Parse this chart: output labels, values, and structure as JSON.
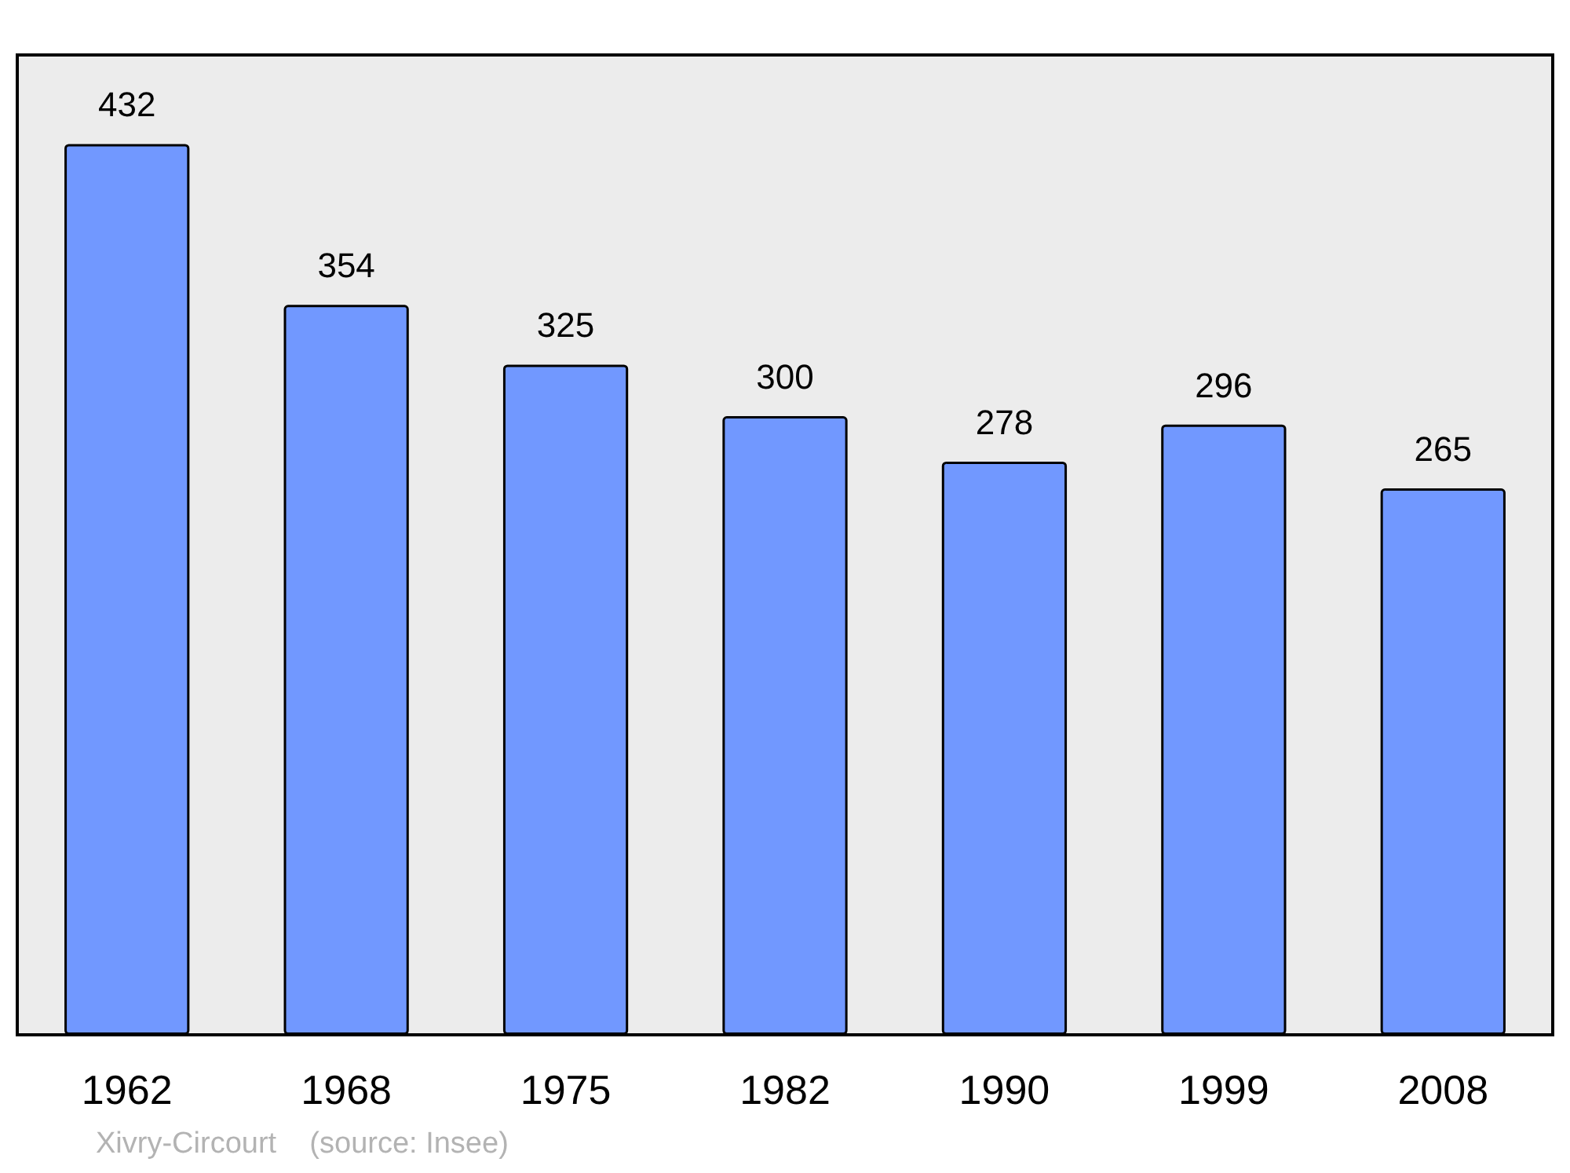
{
  "chart_data": {
    "type": "bar",
    "categories": [
      "1962",
      "1968",
      "1975",
      "1982",
      "1990",
      "1999",
      "2008"
    ],
    "values": [
      432,
      354,
      325,
      300,
      278,
      296,
      265
    ],
    "color": "#7198ff",
    "data_labels": true,
    "annotations": [
      "Xivry-Circourt    (source: Insee)"
    ]
  }
}
